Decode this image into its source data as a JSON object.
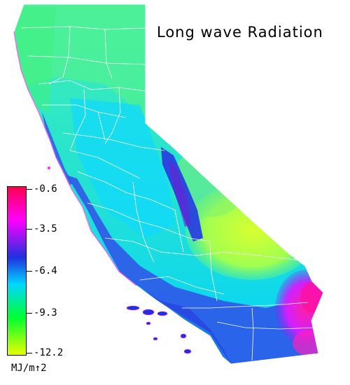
{
  "title": "Long wave Radiation",
  "legend": {
    "ticks": [
      "-0.6",
      "-3.5",
      "-6.4",
      "-9.3",
      "-12.2"
    ],
    "units": "MJ/m↑2",
    "colors": [
      "#ff0060",
      "#ff00ff",
      "#1030e0",
      "#00d0ff",
      "#00ff40",
      "#e0ff00"
    ]
  },
  "colors": {
    "land_base": "#00d8ff",
    "north": "#30f0a0",
    "desert": "#c8ff40",
    "sierra": "#2840e0",
    "coast": "#3048e8",
    "southeast": "#ff10c0",
    "county_lines": "#ffffff"
  }
}
